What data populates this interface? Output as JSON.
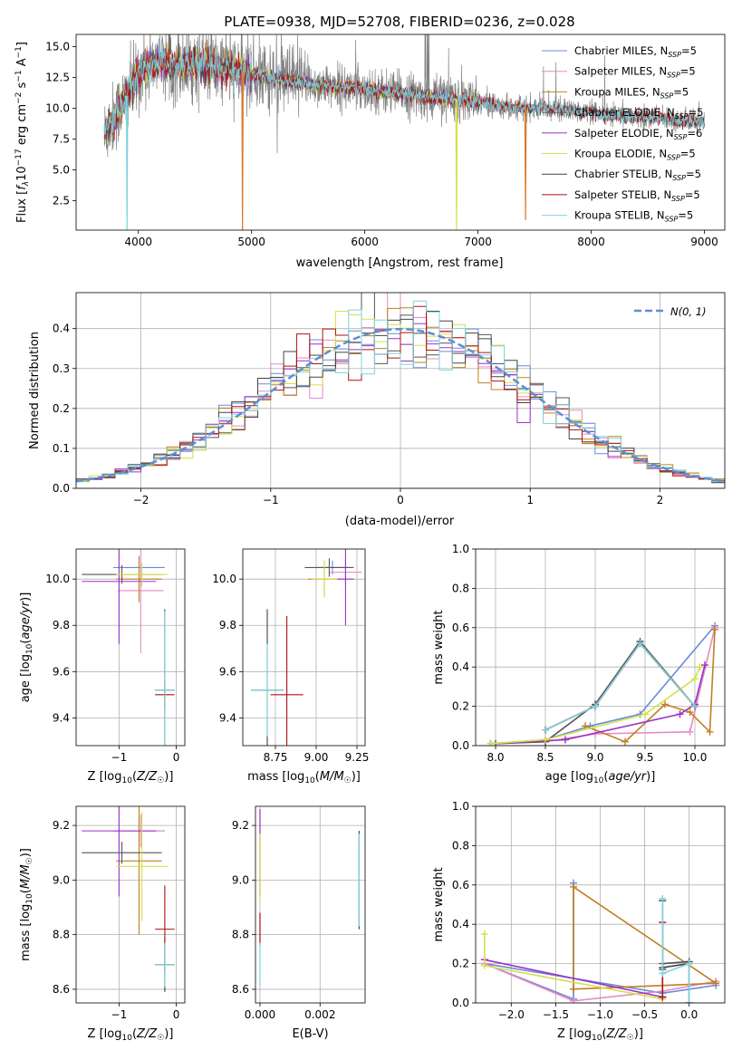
{
  "figure_title": "PLATE=0938, MJD=52708, FIBERID=0236, z=0.028",
  "colors": {
    "Chabrier MILES": "#6a8bd6",
    "Salpeter MILES": "#e78ac3",
    "Kroupa MILES": "#c08020",
    "Chabrier ELODIE": "#555555",
    "Salpeter ELODIE": "#9b30c8",
    "Kroupa ELODIE": "#d4e04a",
    "Chabrier STELIB": "#444444",
    "Salpeter STELIB": "#b01010",
    "Kroupa STELIB": "#7fd3df",
    "data_spectrum": "#808080",
    "normal_curve": "#5b8fd6"
  },
  "legend": [
    {
      "name": "Chabrier MILES",
      "label": "Chabrier MILES, N",
      "sub": "SSP",
      "suffix": "=5"
    },
    {
      "name": "Salpeter MILES",
      "label": "Salpeter MILES, N",
      "sub": "SSP",
      "suffix": "=5"
    },
    {
      "name": "Kroupa MILES",
      "label": "Kroupa MILES, N",
      "sub": "SSP",
      "suffix": "=5"
    },
    {
      "name": "Chabrier ELODIE",
      "label": "Chabrier ELODIE, N",
      "sub": "SSP",
      "suffix": "=5"
    },
    {
      "name": "Salpeter ELODIE",
      "label": "Salpeter ELODIE, N",
      "sub": "SSP",
      "suffix": "=6"
    },
    {
      "name": "Kroupa ELODIE",
      "label": "Kroupa ELODIE, N",
      "sub": "SSP",
      "suffix": "=5"
    },
    {
      "name": "Chabrier STELIB",
      "label": "Chabrier STELIB, N",
      "sub": "SSP",
      "suffix": "=5"
    },
    {
      "name": "Salpeter STELIB",
      "label": "Salpeter STELIB, N",
      "sub": "SSP",
      "suffix": "=5"
    },
    {
      "name": "Kroupa STELIB",
      "label": "Kroupa STELIB, N",
      "sub": "SSP",
      "suffix": "=5"
    }
  ],
  "chart_data": [
    {
      "id": "spectrum",
      "type": "line",
      "title": "PLATE=0938, MJD=52708, FIBERID=0236, z=0.028",
      "xlabel": "wavelength [Angstrom, rest frame]",
      "ylabel": "Flux [f_λ 10^-17 erg cm^-2 s^-1 A^-1]",
      "xlim": [
        3450,
        9180
      ],
      "ylim": [
        0.1,
        16.0
      ],
      "xticks": [
        4000,
        5000,
        6000,
        7000,
        8000,
        9000
      ],
      "yticks": [
        2.5,
        5.0,
        7.5,
        10.0,
        12.5,
        15.0
      ],
      "continuum": {
        "x": [
          3700,
          3800,
          3900,
          4000,
          4100,
          4200,
          4300,
          4400,
          4500,
          4600,
          4700,
          4800,
          4900,
          5000,
          5200,
          5400,
          5600,
          5800,
          6000,
          6200,
          6400,
          6600,
          6800,
          7000,
          7200,
          7400,
          7600,
          7800,
          8000,
          8200,
          8400,
          8600,
          8800,
          9000
        ],
        "y": [
          8.0,
          9.5,
          11.0,
          12.8,
          13.5,
          13.8,
          13.6,
          13.5,
          13.6,
          13.5,
          13.3,
          13.2,
          13.0,
          12.8,
          12.4,
          12.1,
          11.9,
          11.7,
          11.6,
          11.3,
          11.1,
          10.9,
          10.7,
          10.5,
          10.2,
          10.0,
          10.0,
          9.8,
          9.6,
          9.4,
          9.3,
          9.2,
          9.0,
          8.9
        ]
      },
      "data_extent": [
        3700,
        9000
      ],
      "model_extents": [
        [
          3700,
          7420
        ],
        [
          3700,
          7420
        ],
        [
          3700,
          7420
        ],
        [
          3700,
          6820
        ],
        [
          3700,
          6820
        ],
        [
          3700,
          6820
        ],
        [
          3700,
          9000
        ],
        [
          3700,
          9000
        ],
        [
          3700,
          9000
        ]
      ],
      "dips": [
        {
          "x": 3900,
          "y": 0.1
        },
        {
          "x": 4920,
          "y": 0.1
        },
        {
          "x": 6810,
          "y": 0.1
        },
        {
          "x": 7420,
          "y": 0.9
        }
      ]
    },
    {
      "id": "residuals",
      "type": "line",
      "xlabel": "(data-model)/error",
      "ylabel": "Normed distribution",
      "xlim": [
        -2.5,
        2.5
      ],
      "ylim": [
        0,
        0.49
      ],
      "xticks": [
        -2,
        -1,
        0,
        1,
        2
      ],
      "yticks": [
        0.0,
        0.1,
        0.2,
        0.3,
        0.4
      ],
      "bin_width": 0.1,
      "legend_label": "N(0, 1)"
    },
    {
      "id": "age-vs-Z",
      "type": "scatter",
      "xlabel": "Z [log10(Z/Z☉)]",
      "ylabel": "age [log10(age/yr)]",
      "xlim": [
        -1.75,
        0.15
      ],
      "ylim": [
        9.28,
        10.13
      ],
      "xticks": [
        -1,
        0
      ],
      "yticks": [
        9.4,
        9.6,
        9.8,
        10.0
      ],
      "points": [
        {
          "model": "Chabrier MILES",
          "x": -0.65,
          "y": 10.05,
          "xerr": 0.45,
          "yerr": 0.04
        },
        {
          "model": "Salpeter MILES",
          "x": -0.62,
          "y": 9.95,
          "xerr": 0.4,
          "yerr": 0.27
        },
        {
          "model": "Kroupa MILES",
          "x": -0.65,
          "y": 10.0,
          "xerr": 0.4,
          "yerr": 0.1
        },
        {
          "model": "Chabrier ELODIE",
          "x": -0.95,
          "y": 10.02,
          "xerr": 0.7,
          "yerr": 0.04
        },
        {
          "model": "Salpeter ELODIE",
          "x": -1.0,
          "y": 9.99,
          "xerr": 0.65,
          "yerr": 0.27
        },
        {
          "model": "Kroupa ELODIE",
          "x": -0.6,
          "y": 10.02,
          "xerr": 0.45,
          "yerr": 0.05
        },
        {
          "model": "Chabrier STELIB",
          "x": -0.2,
          "y": 9.52,
          "xerr": 0.17,
          "yerr": 0.35
        },
        {
          "model": "Salpeter STELIB",
          "x": -0.2,
          "y": 9.5,
          "xerr": 0.17,
          "yerr": 0.06
        },
        {
          "model": "Kroupa STELIB",
          "x": -0.2,
          "y": 9.52,
          "xerr": 0.17,
          "yerr": 0.34
        }
      ]
    },
    {
      "id": "age-vs-mass",
      "type": "scatter",
      "xlabel": "mass [log10(M/M☉)]",
      "ylabel": "",
      "xlim": [
        8.55,
        9.3
      ],
      "ylim": [
        9.28,
        10.13
      ],
      "xticks": [
        8.75,
        9.0,
        9.25
      ],
      "yticks": [
        9.4,
        9.6,
        9.8,
        10.0
      ],
      "points": [
        {
          "model": "Chabrier MILES",
          "x": 9.1,
          "y": 10.05,
          "xerr": 0.1,
          "yerr": 0.03
        },
        {
          "model": "Salpeter MILES",
          "x": 9.18,
          "y": 10.03,
          "xerr": 0.1,
          "yerr": 0.05
        },
        {
          "model": "Kroupa MILES",
          "x": 9.05,
          "y": 10.0,
          "xerr": 0.1,
          "yerr": 0.08
        },
        {
          "model": "Chabrier ELODIE",
          "x": 9.08,
          "y": 10.05,
          "xerr": 0.15,
          "yerr": 0.04
        },
        {
          "model": "Salpeter ELODIE",
          "x": 9.18,
          "y": 10.0,
          "xerr": 0.05,
          "yerr": 0.2
        },
        {
          "model": "Kroupa ELODIE",
          "x": 9.05,
          "y": 10.0,
          "xerr": 0.08,
          "yerr": 0.08
        },
        {
          "model": "Chabrier STELIB",
          "x": 8.7,
          "y": 9.52,
          "xerr": 0.1,
          "yerr": 0.35
        },
        {
          "model": "Salpeter STELIB",
          "x": 8.82,
          "y": 9.5,
          "xerr": 0.1,
          "yerr": 0.34
        },
        {
          "model": "Kroupa STELIB",
          "x": 8.7,
          "y": 9.52,
          "xerr": 0.1,
          "yerr": 0.2
        }
      ]
    },
    {
      "id": "mass-weight-vs-age",
      "type": "line",
      "xlabel": "age [log10(age/yr)]",
      "ylabel": "mass weight",
      "xlim": [
        7.8,
        10.3
      ],
      "ylim": [
        0,
        1.0
      ],
      "xticks": [
        8.0,
        8.5,
        9.0,
        9.5,
        10.0
      ],
      "yticks": [
        0.0,
        0.2,
        0.4,
        0.6,
        0.8,
        1.0
      ],
      "series": [
        {
          "model": "Chabrier MILES",
          "x": [
            7.95,
            8.5,
            8.95,
            9.45,
            10.2
          ],
          "y": [
            0.01,
            0.03,
            0.1,
            0.16,
            0.61
          ]
        },
        {
          "model": "Salpeter MILES",
          "x": [
            7.95,
            8.5,
            9.0,
            9.95,
            10.2
          ],
          "y": [
            0.01,
            0.02,
            0.06,
            0.07,
            0.6
          ]
        },
        {
          "model": "Kroupa MILES",
          "x": [
            8.9,
            9.3,
            9.7,
            9.95,
            10.15,
            10.2
          ],
          "y": [
            0.1,
            0.02,
            0.21,
            0.17,
            0.07,
            0.59
          ]
        },
        {
          "model": "Chabrier ELODIE",
          "x": [
            8.0,
            8.5,
            9.0,
            9.45,
            10.0
          ],
          "y": [
            0.01,
            0.02,
            0.21,
            0.53,
            0.2
          ]
        },
        {
          "model": "Salpeter ELODIE",
          "x": [
            7.95,
            8.7,
            9.85,
            10.0,
            10.1
          ],
          "y": [
            0.01,
            0.03,
            0.16,
            0.21,
            0.41
          ]
        },
        {
          "model": "Kroupa ELODIE",
          "x": [
            7.95,
            8.5,
            9.5,
            10.0,
            10.05
          ],
          "y": [
            0.01,
            0.03,
            0.16,
            0.34,
            0.4
          ]
        },
        {
          "model": "Chabrier STELIB",
          "x": [
            8.5,
            9.0,
            9.45,
            10.0
          ],
          "y": [
            0.08,
            0.2,
            0.52,
            0.2
          ]
        },
        {
          "model": "Salpeter STELIB",
          "x": [
            8.5,
            9.0,
            9.45,
            10.0
          ],
          "y": [
            0.08,
            0.2,
            0.52,
            0.2
          ]
        },
        {
          "model": "Kroupa STELIB",
          "x": [
            8.5,
            9.0,
            9.45,
            10.0
          ],
          "y": [
            0.08,
            0.2,
            0.52,
            0.2
          ]
        }
      ]
    },
    {
      "id": "mass-vs-Z",
      "type": "scatter",
      "xlabel": "Z [log10(Z/Z☉)]",
      "ylabel": "mass [log10(M/M☉)]",
      "xlim": [
        -1.75,
        0.15
      ],
      "ylim": [
        8.55,
        9.27
      ],
      "xticks": [
        -1,
        0
      ],
      "yticks": [
        8.6,
        8.8,
        9.0,
        9.2
      ],
      "points": [
        {
          "model": "Chabrier MILES",
          "x": -0.65,
          "y": 9.18,
          "xerr": 0.45,
          "yerr": 0.04
        },
        {
          "model": "Salpeter MILES",
          "x": -0.62,
          "y": 9.18,
          "xerr": 0.4,
          "yerr": 0.06
        },
        {
          "model": "Kroupa MILES",
          "x": -0.65,
          "y": 9.07,
          "xerr": 0.4,
          "yerr": 0.27
        },
        {
          "model": "Chabrier ELODIE",
          "x": -0.95,
          "y": 9.1,
          "xerr": 0.7,
          "yerr": 0.04
        },
        {
          "model": "Salpeter ELODIE",
          "x": -1.0,
          "y": 9.18,
          "xerr": 0.65,
          "yerr": 0.24
        },
        {
          "model": "Kroupa ELODIE",
          "x": -0.6,
          "y": 9.05,
          "xerr": 0.45,
          "yerr": 0.2
        },
        {
          "model": "Chabrier STELIB",
          "x": -0.2,
          "y": 8.69,
          "xerr": 0.17,
          "yerr": 0.1
        },
        {
          "model": "Salpeter STELIB",
          "x": -0.2,
          "y": 8.82,
          "xerr": 0.17,
          "yerr": 0.16
        },
        {
          "model": "Kroupa STELIB",
          "x": -0.2,
          "y": 8.69,
          "xerr": 0.17,
          "yerr": 0.08
        }
      ]
    },
    {
      "id": "mass-vs-EBV",
      "type": "scatter",
      "xlabel": "E(B-V)",
      "ylabel": "",
      "xlim": [
        -0.00015,
        0.0035
      ],
      "ylim": [
        8.55,
        9.27
      ],
      "xticks": [
        0.0,
        0.002
      ],
      "xtick_labels": [
        "0.000",
        "0.002"
      ],
      "yticks": [
        8.6,
        8.8,
        9.0,
        9.2
      ],
      "points": [
        {
          "model": "Salpeter ELODIE",
          "x": 0.0,
          "y": 9.1,
          "yerr": 0.16
        },
        {
          "model": "Kroupa ELODIE",
          "x": 0.0,
          "y": 9.05,
          "yerr": 0.12
        },
        {
          "model": "Salpeter STELIB",
          "x": 0.0,
          "y": 8.82,
          "yerr": 0.06
        },
        {
          "model": "Kroupa STELIB",
          "x": 0.0,
          "y": 8.69,
          "yerr": 0.08
        },
        {
          "model": "Chabrier STELIB",
          "x": 0.0033,
          "y": 9.0,
          "yerr": 0.18
        },
        {
          "model": "Kroupa STELIB",
          "x": 0.0033,
          "y": 9.0,
          "yerr": 0.17
        }
      ]
    },
    {
      "id": "mass-weight-vs-Z",
      "type": "line",
      "xlabel": "Z [log10(Z/Z☉)]",
      "ylabel": "mass weight",
      "xlim": [
        -2.4,
        0.4
      ],
      "ylim": [
        0,
        1.0
      ],
      "xticks": [
        -2.0,
        -1.5,
        -1.0,
        -0.5,
        0.0
      ],
      "yticks": [
        0.0,
        0.2,
        0.4,
        0.6,
        0.8,
        1.0
      ],
      "series": [
        {
          "model": "Chabrier MILES",
          "x": [
            -1.3,
            -1.3,
            -2.3,
            -0.3,
            0.3
          ],
          "y": [
            0.61,
            0.02,
            0.2,
            0.05,
            0.09
          ]
        },
        {
          "model": "Salpeter MILES",
          "x": [
            -2.3,
            -1.3,
            -0.3,
            0.3
          ],
          "y": [
            0.2,
            0.01,
            0.06,
            0.11
          ]
        },
        {
          "model": "Kroupa MILES",
          "x": [
            -1.3,
            -1.3,
            0.3,
            -1.3
          ],
          "y": [
            0.07,
            0.59,
            0.1,
            0.07
          ]
        },
        {
          "model": "Chabrier ELODIE",
          "x": [
            -0.3,
            -0.3,
            0.0,
            0.0
          ],
          "y": [
            0.17,
            0.2,
            0.21,
            0.0
          ]
        },
        {
          "model": "Salpeter ELODIE",
          "x": [
            -2.3,
            -0.3
          ],
          "y": [
            0.22,
            0.03
          ]
        },
        {
          "model": "Kroupa ELODIE",
          "x": [
            -2.3,
            -2.3,
            -0.3
          ],
          "y": [
            0.35,
            0.19,
            0.02
          ]
        },
        {
          "model": "Chabrier STELIB",
          "x": [
            -0.3,
            -0.3,
            0.0,
            0.0
          ],
          "y": [
            0.52,
            0.18,
            0.2,
            0.0
          ]
        },
        {
          "model": "Salpeter STELIB",
          "x": [
            -0.3,
            -0.3
          ],
          "y": [
            0.41,
            0.03
          ]
        },
        {
          "model": "Kroupa STELIB",
          "x": [
            -0.3,
            -0.3,
            0.0,
            0.0
          ],
          "y": [
            0.53,
            0.15,
            0.2,
            0.0
          ]
        }
      ]
    }
  ]
}
